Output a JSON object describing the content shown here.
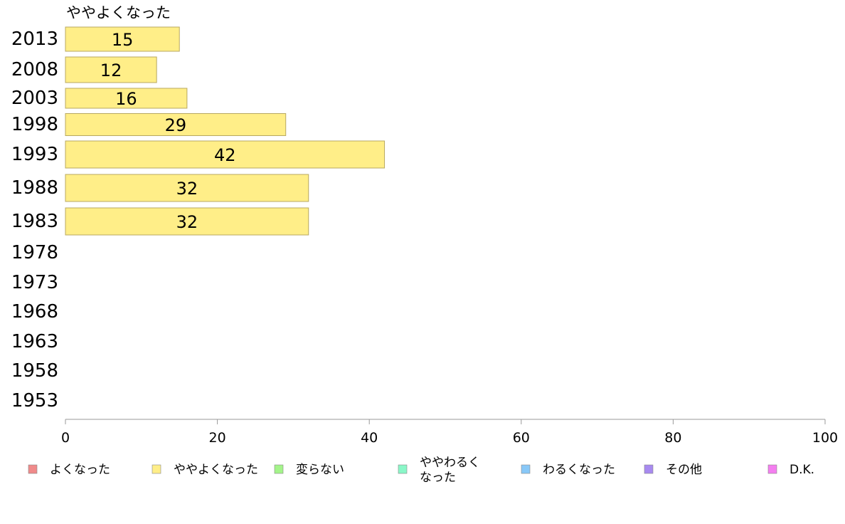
{
  "chart_data": {
    "type": "bar",
    "orientation": "horizontal",
    "series_title": "ややよくなった",
    "categories": [
      "2013",
      "2008",
      "2003",
      "1998",
      "1993",
      "1988",
      "1983",
      "1978",
      "1973",
      "1968",
      "1963",
      "1958",
      "1953"
    ],
    "series": [
      {
        "name": "ややよくなった",
        "values": [
          15,
          12,
          16,
          29,
          42,
          32,
          32,
          null,
          null,
          null,
          null,
          null,
          null
        ]
      }
    ],
    "xlim": [
      0,
      100
    ],
    "xticks": [
      "0",
      "20",
      "40",
      "60",
      "80",
      "100"
    ],
    "grid": false,
    "legend_position": "bottom",
    "legend": [
      {
        "label": "よくなった",
        "color": "#f08a8a"
      },
      {
        "label": "ややよくなった",
        "color": "#ffee88"
      },
      {
        "label": "変らない",
        "color": "#a4f48a"
      },
      {
        "label": "ややわるく\nなった",
        "color": "#8af7c8"
      },
      {
        "label": "わるくなった",
        "color": "#88c8f8"
      },
      {
        "label": "その他",
        "color": "#a88af0"
      },
      {
        "label": "D.K.",
        "color": "#f47ef0"
      }
    ],
    "bar_color": "#ffee88",
    "bar_stroke": "#b8a860"
  }
}
